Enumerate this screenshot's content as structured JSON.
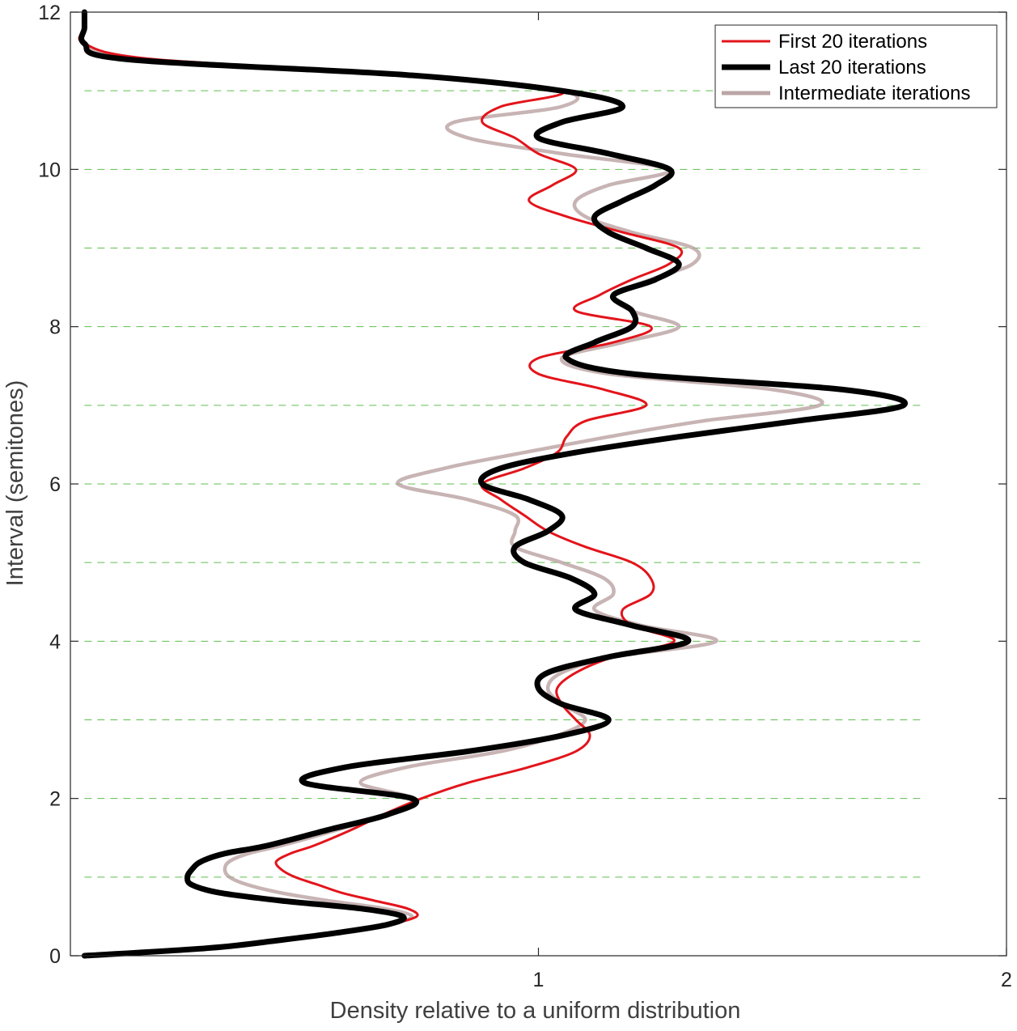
{
  "chart_data": {
    "type": "line",
    "title": "",
    "xlabel": "Density relative to a uniform distribution",
    "ylabel": "Interval (semitones)",
    "xlim": [
      0,
      2
    ],
    "ylim": [
      0,
      12
    ],
    "x_ticks": [
      1,
      2
    ],
    "x_tick_labels": [
      "1",
      "2"
    ],
    "y_ticks": [
      0,
      2,
      4,
      6,
      8,
      10,
      12
    ],
    "y_tick_labels": [
      "0",
      "2",
      "4",
      "6",
      "8",
      "10",
      "12"
    ],
    "reference_lines": {
      "orientation": "horizontal",
      "style": "dashed",
      "color": "#5fbf4f",
      "x_range": [
        0.03,
        1.82
      ],
      "y_values": [
        1,
        2,
        3,
        4,
        5,
        6,
        7,
        8,
        9,
        10,
        11
      ]
    },
    "legend": {
      "placement": "top-right",
      "entries": [
        "First 20 iterations",
        "Last 20 iterations",
        "Intermediate iterations"
      ]
    },
    "series": [
      {
        "name": "First 20 iterations",
        "color": "#e3141b",
        "y": [
          0,
          0.1,
          0.2,
          0.3,
          0.4,
          0.5,
          0.6,
          0.7,
          0.8,
          0.9,
          1,
          1.1,
          1.2,
          1.3,
          1.4,
          1.6,
          1.8,
          2,
          2.2,
          2.4,
          2.6,
          2.8,
          3,
          3.2,
          3.4,
          3.6,
          3.8,
          4,
          4.2,
          4.4,
          4.6,
          4.8,
          5,
          5.2,
          5.4,
          5.6,
          5.8,
          6,
          6.2,
          6.4,
          6.6,
          6.8,
          7,
          7.2,
          7.4,
          7.6,
          7.8,
          8,
          8.2,
          8.4,
          8.6,
          8.8,
          9,
          9.2,
          9.4,
          9.6,
          9.8,
          10,
          10.2,
          10.4,
          10.6,
          10.8,
          11,
          11.2,
          11.4,
          11.6,
          11.8,
          12
        ],
        "x": [
          0.03,
          0.3,
          0.45,
          0.58,
          0.68,
          0.74,
          0.72,
          0.65,
          0.58,
          0.53,
          0.48,
          0.45,
          0.44,
          0.47,
          0.52,
          0.6,
          0.67,
          0.75,
          0.85,
          0.98,
          1.08,
          1.11,
          1.08,
          1.05,
          1.04,
          1.08,
          1.16,
          1.29,
          1.2,
          1.18,
          1.24,
          1.24,
          1.2,
          1.1,
          1.02,
          0.97,
          0.92,
          0.88,
          0.97,
          1.04,
          1.06,
          1.1,
          1.23,
          1.14,
          1.0,
          1.0,
          1.16,
          1.24,
          1.08,
          1.13,
          1.2,
          1.28,
          1.3,
          1.18,
          1.06,
          0.98,
          1.03,
          1.08,
          1.0,
          0.95,
          0.88,
          0.92,
          1.05,
          0.75,
          0.18,
          0.03,
          0.03,
          0.03
        ]
      },
      {
        "name": "Last 20 iterations",
        "color": "#000000",
        "y": [
          0,
          0.1,
          0.2,
          0.3,
          0.4,
          0.5,
          0.6,
          0.7,
          0.8,
          0.9,
          1,
          1.1,
          1.2,
          1.3,
          1.4,
          1.6,
          1.8,
          2,
          2.2,
          2.4,
          2.6,
          2.8,
          3,
          3.2,
          3.4,
          3.6,
          3.8,
          4,
          4.2,
          4.4,
          4.6,
          4.8,
          5,
          5.2,
          5.4,
          5.6,
          5.8,
          6,
          6.2,
          6.4,
          6.6,
          6.8,
          7,
          7.2,
          7.4,
          7.6,
          7.8,
          8,
          8.2,
          8.4,
          8.6,
          8.8,
          9,
          9.2,
          9.4,
          9.6,
          9.8,
          10,
          10.2,
          10.4,
          10.6,
          10.8,
          11,
          11.2,
          11.4,
          11.6,
          11.8,
          12
        ],
        "x": [
          0.03,
          0.3,
          0.45,
          0.58,
          0.68,
          0.71,
          0.62,
          0.45,
          0.32,
          0.26,
          0.25,
          0.26,
          0.28,
          0.33,
          0.42,
          0.55,
          0.68,
          0.73,
          0.5,
          0.59,
          0.85,
          1.05,
          1.15,
          1.05,
          1.0,
          1.02,
          1.15,
          1.32,
          1.2,
          1.08,
          1.12,
          1.07,
          0.97,
          0.95,
          1.02,
          1.05,
          0.98,
          0.88,
          0.92,
          1.08,
          1.3,
          1.55,
          1.78,
          1.65,
          1.2,
          1.06,
          1.12,
          1.2,
          1.2,
          1.16,
          1.25,
          1.3,
          1.23,
          1.15,
          1.12,
          1.18,
          1.25,
          1.28,
          1.15,
          1.0,
          1.05,
          1.18,
          1.05,
          0.72,
          0.12,
          0.03,
          0.03,
          0.03
        ]
      },
      {
        "name": "Intermediate iterations",
        "color": "#b59b9b",
        "y": [
          0,
          0.1,
          0.2,
          0.3,
          0.4,
          0.5,
          0.6,
          0.7,
          0.8,
          0.9,
          1,
          1.1,
          1.2,
          1.3,
          1.4,
          1.6,
          1.8,
          2,
          2.2,
          2.4,
          2.6,
          2.8,
          3,
          3.2,
          3.4,
          3.6,
          3.8,
          4,
          4.2,
          4.4,
          4.6,
          4.8,
          5,
          5.2,
          5.4,
          5.6,
          5.8,
          6,
          6.2,
          6.4,
          6.6,
          6.8,
          7,
          7.2,
          7.4,
          7.6,
          7.8,
          8,
          8.2,
          8.4,
          8.6,
          8.8,
          9,
          9.2,
          9.4,
          9.6,
          9.8,
          10,
          10.2,
          10.4,
          10.6,
          10.8,
          11,
          11.2,
          11.4,
          11.6,
          11.8,
          12
        ],
        "x": [
          0.03,
          0.3,
          0.45,
          0.58,
          0.68,
          0.73,
          0.67,
          0.55,
          0.45,
          0.38,
          0.34,
          0.33,
          0.34,
          0.38,
          0.45,
          0.57,
          0.68,
          0.73,
          0.62,
          0.72,
          0.92,
          1.04,
          1.1,
          1.05,
          1.02,
          1.05,
          1.16,
          1.38,
          1.22,
          1.12,
          1.16,
          1.14,
          1.05,
          0.95,
          0.95,
          0.95,
          0.85,
          0.7,
          0.8,
          0.97,
          1.15,
          1.35,
          1.6,
          1.5,
          1.15,
          1.05,
          1.18,
          1.3,
          1.2,
          1.16,
          1.24,
          1.33,
          1.33,
          1.2,
          1.1,
          1.08,
          1.15,
          1.28,
          1.05,
          0.85,
          0.82,
          1.05,
          1.05,
          0.74,
          0.15,
          0.03,
          0.03,
          0.03
        ]
      }
    ]
  }
}
